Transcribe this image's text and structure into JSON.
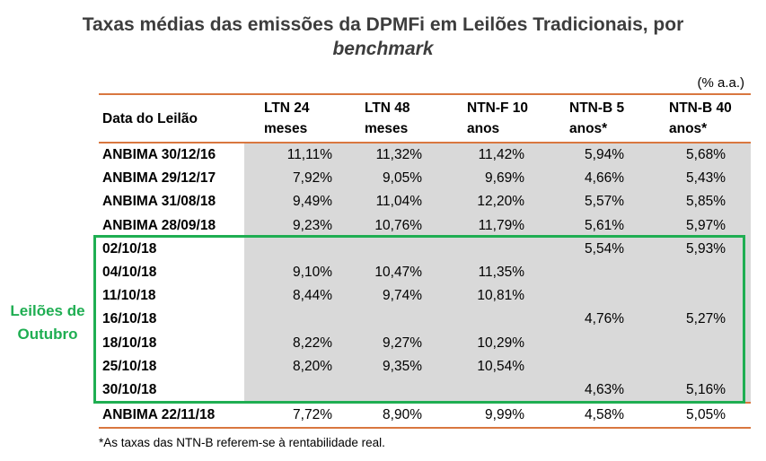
{
  "title": {
    "line1": "Taxas médias das emissões da DPMFi em Leilões Tradicionais, por",
    "line2": "benchmark"
  },
  "unit": "(% a.a.)",
  "table": {
    "headers": [
      [
        "Data do Leilão"
      ],
      [
        "LTN 24",
        "meses"
      ],
      [
        "LTN 48",
        "meses"
      ],
      [
        "NTN-F 10",
        "anos"
      ],
      [
        "NTN-B 5",
        "anos*"
      ],
      [
        "NTN-B 40",
        "anos*"
      ]
    ],
    "rows": [
      [
        "ANBIMA 30/12/16",
        "11,11%",
        "11,32%",
        "11,42%",
        "5,94%",
        "5,68%"
      ],
      [
        "ANBIMA 29/12/17",
        "7,92%",
        "9,05%",
        "9,69%",
        "4,66%",
        "5,43%"
      ],
      [
        "ANBIMA 31/08/18",
        "9,49%",
        "11,04%",
        "12,20%",
        "5,57%",
        "5,85%"
      ],
      [
        "ANBIMA 28/09/18",
        "9,23%",
        "10,76%",
        "11,79%",
        "5,61%",
        "5,97%"
      ],
      [
        "02/10/18",
        "",
        "",
        "",
        "5,54%",
        "5,93%"
      ],
      [
        "04/10/18",
        "9,10%",
        "10,47%",
        "11,35%",
        "",
        ""
      ],
      [
        "11/10/18",
        "8,44%",
        "9,74%",
        "10,81%",
        "",
        ""
      ],
      [
        "16/10/18",
        "",
        "",
        "",
        "4,76%",
        "5,27%"
      ],
      [
        "18/10/18",
        "8,22%",
        "9,27%",
        "10,29%",
        "",
        ""
      ],
      [
        "25/10/18",
        "8,20%",
        "9,35%",
        "10,54%",
        "",
        ""
      ],
      [
        "30/10/18",
        "",
        "",
        "",
        "4,63%",
        "5,16%"
      ]
    ],
    "last_row": [
      "ANBIMA 22/11/18",
      "7,72%",
      "8,90%",
      "9,99%",
      "4,58%",
      "5,05%"
    ]
  },
  "side_label": [
    "Leilões de",
    "Outubro"
  ],
  "footnote": "*As taxas das NTN-B referem-se à rentabilidade real.",
  "colors": {
    "rule": "#d9773f",
    "highlight": "#1fae52",
    "cell_bg": "#d9d9d9"
  }
}
